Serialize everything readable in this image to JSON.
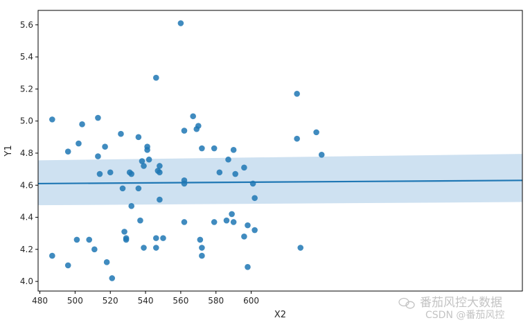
{
  "chart_data": {
    "type": "scatter",
    "title": "",
    "xlabel": "X2",
    "ylabel": "Y1",
    "xlim": [
      479,
      754
    ],
    "ylim": [
      3.94,
      5.69
    ],
    "xticks": [
      480,
      500,
      520,
      540,
      560,
      580,
      600
    ],
    "yticks": [
      4.0,
      4.2,
      4.4,
      4.6,
      4.8,
      5.0,
      5.2,
      5.4,
      5.6
    ],
    "grid": false,
    "colors": {
      "points": "#1f77b4",
      "line": "#1f77b4",
      "band": "#c6dcef"
    },
    "points": [
      [
        487,
        5.01
      ],
      [
        487,
        4.16
      ],
      [
        496,
        4.81
      ],
      [
        496,
        4.1
      ],
      [
        501,
        4.26
      ],
      [
        502,
        4.86
      ],
      [
        504,
        4.98
      ],
      [
        508,
        4.26
      ],
      [
        511,
        4.2
      ],
      [
        513,
        5.02
      ],
      [
        513,
        4.78
      ],
      [
        514,
        4.67
      ],
      [
        517,
        4.84
      ],
      [
        518,
        4.12
      ],
      [
        520,
        4.68
      ],
      [
        521,
        4.02
      ],
      [
        526,
        4.92
      ],
      [
        527,
        4.58
      ],
      [
        528,
        4.31
      ],
      [
        529,
        4.27
      ],
      [
        529,
        4.26
      ],
      [
        531,
        4.68
      ],
      [
        532,
        4.67
      ],
      [
        532,
        4.47
      ],
      [
        536,
        4.9
      ],
      [
        536,
        4.58
      ],
      [
        537,
        4.38
      ],
      [
        538,
        4.75
      ],
      [
        539,
        4.72
      ],
      [
        539,
        4.21
      ],
      [
        541,
        4.84
      ],
      [
        541,
        4.82
      ],
      [
        542,
        4.76
      ],
      [
        546,
        5.27
      ],
      [
        546,
        4.27
      ],
      [
        546,
        4.21
      ],
      [
        547,
        4.69
      ],
      [
        548,
        4.72
      ],
      [
        548,
        4.68
      ],
      [
        548,
        4.51
      ],
      [
        550,
        4.27
      ],
      [
        560,
        5.61
      ],
      [
        562,
        4.94
      ],
      [
        562,
        4.63
      ],
      [
        562,
        4.61
      ],
      [
        562,
        4.37
      ],
      [
        567,
        5.03
      ],
      [
        569,
        4.95
      ],
      [
        570,
        4.97
      ],
      [
        571,
        4.26
      ],
      [
        572,
        4.83
      ],
      [
        572,
        4.21
      ],
      [
        572,
        4.16
      ],
      [
        579,
        4.83
      ],
      [
        579,
        4.37
      ],
      [
        582,
        4.68
      ],
      [
        586,
        4.38
      ],
      [
        587,
        4.76
      ],
      [
        589,
        4.42
      ],
      [
        590,
        4.82
      ],
      [
        590,
        4.37
      ],
      [
        591,
        4.67
      ],
      [
        596,
        4.71
      ],
      [
        596,
        4.28
      ],
      [
        598,
        4.35
      ],
      [
        598,
        4.09
      ],
      [
        601,
        4.61
      ],
      [
        602,
        4.52
      ],
      [
        602,
        4.32
      ],
      [
        626,
        5.17
      ],
      [
        626,
        4.89
      ],
      [
        628,
        4.21
      ],
      [
        637,
        4.93
      ],
      [
        640,
        4.79
      ]
    ],
    "regression": {
      "x": [
        479,
        754
      ],
      "y": [
        4.61,
        4.63
      ],
      "ci_lower": [
        4.475,
        4.495
      ],
      "ci_upper": [
        4.755,
        4.795
      ]
    }
  },
  "watermark": {
    "line1": "番茄风控大数据",
    "line2": "CSDN @番茄风控"
  }
}
